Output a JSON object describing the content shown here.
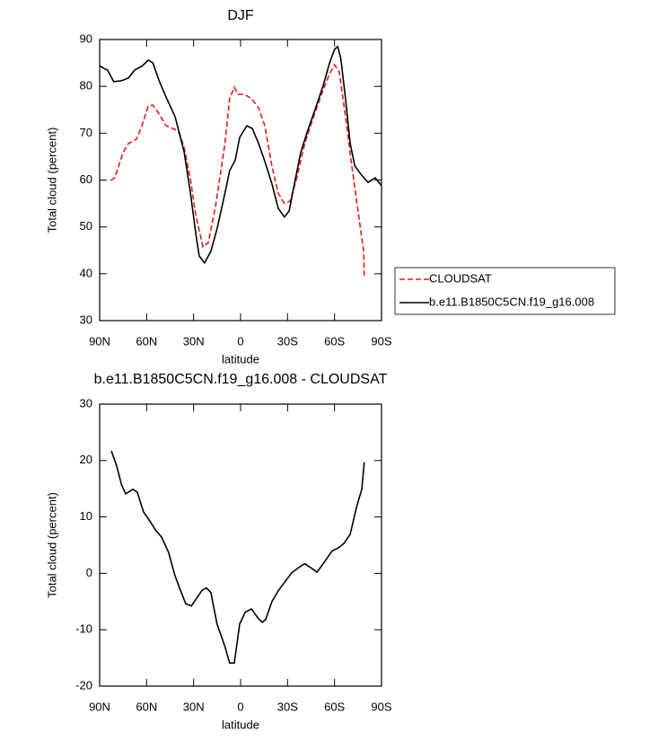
{
  "chart_data": [
    {
      "type": "line",
      "title": "DJF",
      "xlabel": "latitude",
      "ylabel": "Total cloud (percent)",
      "xlim": [
        90,
        -90
      ],
      "ylim": [
        30,
        90
      ],
      "xticks": [
        {
          "value": 90,
          "label": "90N"
        },
        {
          "value": 60,
          "label": "60N"
        },
        {
          "value": 30,
          "label": "30N"
        },
        0,
        {
          "value": -30,
          "label": "30S"
        },
        {
          "value": -60,
          "label": "60S"
        },
        {
          "value": -90,
          "label": "90S"
        }
      ],
      "yticks": [
        30,
        40,
        50,
        60,
        70,
        80,
        90
      ],
      "legend": "right",
      "series": [
        {
          "name": "CLOUDSAT",
          "color": "#e31a1c",
          "dashed": true,
          "x": [
            83,
            80.3,
            75,
            71.6,
            66.5,
            63,
            59,
            56,
            51.6,
            47.6,
            41.8,
            39,
            36,
            32,
            28.6,
            24,
            20.6,
            16,
            10,
            7,
            4,
            1.7,
            -2.3,
            -7,
            -11.5,
            -15.5,
            -20,
            -24,
            -28,
            -31.6,
            -35.6,
            -41,
            -47,
            -52.8,
            -56.8,
            -60,
            -63,
            -67,
            -71,
            -74.6,
            -78.6,
            -79
          ],
          "values": [
            59.9,
            60.5,
            65.9,
            67.8,
            68.7,
            71.6,
            75.8,
            76,
            73.9,
            71.6,
            70.8,
            70,
            66.8,
            60.1,
            52.5,
            45.7,
            46.7,
            54.4,
            67.8,
            77.4,
            79.8,
            78.3,
            78.3,
            77.4,
            75.4,
            71.6,
            63,
            57.2,
            55,
            55.5,
            60.1,
            67.8,
            73.9,
            79.3,
            82.7,
            84.6,
            83.1,
            73.5,
            63,
            54.4,
            44.8,
            39.6
          ]
        },
        {
          "name": "b.e11.B1850C5CN.f19_g16.008",
          "color": "#000000",
          "dashed": false,
          "x": [
            90,
            87.7,
            85,
            81,
            76,
            71.6,
            67.6,
            63,
            59,
            56,
            52,
            47.6,
            41.8,
            36,
            32,
            28.6,
            26.4,
            23,
            19,
            15,
            10,
            7,
            3.4,
            0.6,
            -4,
            -7.5,
            -11.5,
            -15.5,
            -20,
            -24,
            -28,
            -31,
            -34.4,
            -38.4,
            -43,
            -47,
            -52.8,
            -56.8,
            -60,
            -62,
            -64,
            -67,
            -70,
            -73,
            -77.4,
            -81.4,
            -86,
            -90
          ],
          "values": [
            84.4,
            83.9,
            83.5,
            81,
            81.2,
            81.8,
            83.5,
            84.3,
            85.6,
            85,
            81.2,
            77.7,
            73.5,
            65.9,
            57.2,
            48.6,
            43.8,
            42.3,
            44.8,
            49.6,
            57.2,
            62,
            64.3,
            69.1,
            71.6,
            71,
            67.8,
            64,
            59.2,
            54,
            52.1,
            53.4,
            59.2,
            65.9,
            70.7,
            74.5,
            80.2,
            85,
            87.9,
            88.5,
            86,
            77.4,
            67.8,
            63,
            61,
            59.5,
            60.5,
            58.8
          ]
        }
      ]
    },
    {
      "type": "line",
      "title": "b.e11.B1850C5CN.f19_g16.008 - CLOUDSAT",
      "xlabel": "latitude",
      "ylabel": "Total cloud (percent)",
      "xlim": [
        90,
        -90
      ],
      "ylim": [
        -20,
        30
      ],
      "xticks": [
        {
          "value": 90,
          "label": "90N"
        },
        {
          "value": 60,
          "label": "60N"
        },
        {
          "value": 30,
          "label": "30N"
        },
        0,
        {
          "value": -30,
          "label": "30S"
        },
        {
          "value": -60,
          "label": "60S"
        },
        {
          "value": -90,
          "label": "90S"
        }
      ],
      "yticks": [
        -20,
        -10,
        0,
        10,
        20,
        30
      ],
      "series": [
        {
          "color": "#000000",
          "dashed": false,
          "x": [
            82.5,
            79,
            76,
            73.4,
            68.8,
            66,
            62,
            58,
            54.4,
            50.4,
            46,
            42,
            39,
            35,
            31.5,
            27.5,
            24.6,
            21.8,
            19,
            15,
            10,
            7,
            4,
            0.6,
            -3,
            -7,
            -11,
            -13.8,
            -16,
            -20,
            -24,
            -29.7,
            -32.7,
            -37,
            -41,
            -45.3,
            -48.8,
            -52.8,
            -58.5,
            -62.5,
            -66,
            -70,
            -74,
            -77.4,
            -79
          ],
          "values": [
            21.7,
            18.9,
            15.7,
            14.1,
            14.9,
            14.4,
            10.9,
            9.3,
            7.7,
            6.4,
            3.7,
            -0.3,
            -2.6,
            -5.4,
            -5.8,
            -4.2,
            -3,
            -2.6,
            -3.4,
            -9,
            -13,
            -15.9,
            -15.9,
            -9,
            -6.9,
            -6.3,
            -7.9,
            -8.7,
            -8.2,
            -5,
            -3.1,
            -1,
            0.1,
            1,
            1.7,
            0.9,
            0.2,
            1.7,
            4,
            4.5,
            5.3,
            6.9,
            11.7,
            14.9,
            19.7
          ]
        }
      ]
    }
  ]
}
